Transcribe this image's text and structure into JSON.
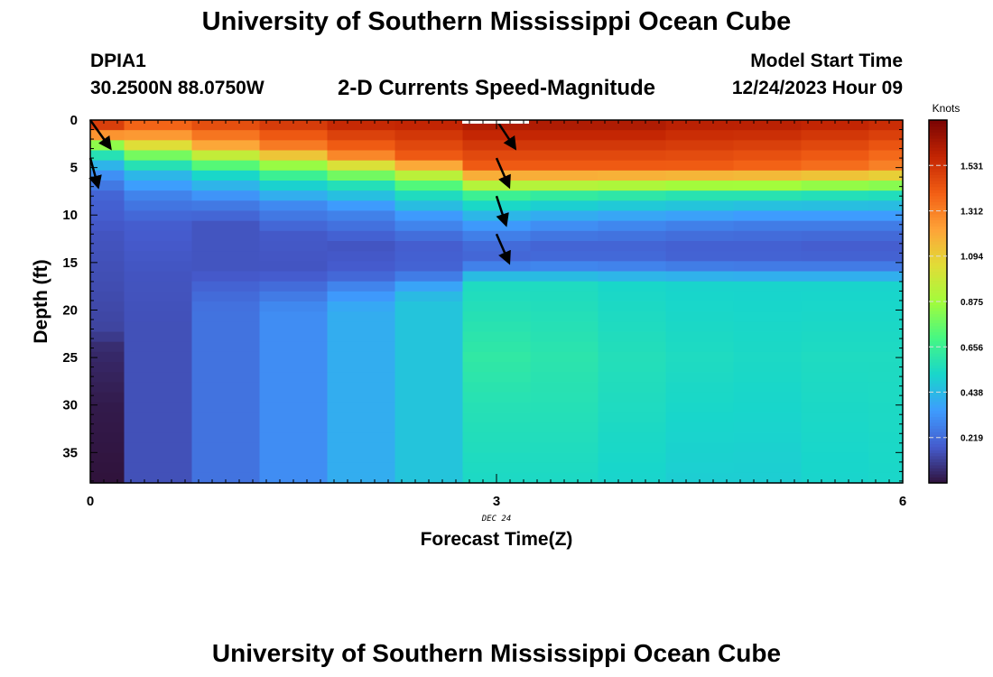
{
  "header": {
    "title": "University of Southern Mississippi Ocean Cube",
    "station": "DPIA1",
    "coords": "30.2500N  88.0750W",
    "subtitle": "2-D Currents Speed-Magnitude",
    "model_start_label": "Model Start Time",
    "model_start_value": "12/24/2023 Hour 09"
  },
  "footer": {
    "title": "University of Southern Mississippi Ocean Cube"
  },
  "chart_data": {
    "type": "heatmap",
    "xlabel": "Forecast Time(Z)",
    "ylabel": "Depth (ft)",
    "x_ticks": [
      0,
      3,
      6
    ],
    "x_tick_labels": [
      "0",
      "3",
      "6"
    ],
    "x_date_label": "DEC 24",
    "xlim": [
      0,
      6
    ],
    "y_ticks": [
      0,
      5,
      10,
      15,
      20,
      25,
      30,
      35
    ],
    "y_tick_labels": [
      "0",
      "5",
      "10",
      "15",
      "20",
      "25",
      "30",
      "35"
    ],
    "ylim": [
      0,
      38.2
    ],
    "y_inverted": true,
    "colorbar": {
      "title": "Knots",
      "ticks": [
        0.219,
        0.438,
        0.656,
        0.875,
        1.094,
        1.312,
        1.531
      ],
      "tick_labels": [
        "0.219",
        "0.438",
        "0.656",
        "0.875",
        "1.094",
        "1.312",
        "1.531"
      ],
      "range": [
        0,
        1.75
      ]
    },
    "time_columns": [
      0,
      0.5,
      1,
      1.5,
      2,
      2.5,
      3,
      3.5,
      4,
      4.5,
      5,
      5.5,
      6
    ],
    "depth_profiles": [
      {
        "name": "col0",
        "stops": [
          [
            0,
            1.6
          ],
          [
            1.5,
            1.3
          ],
          [
            3,
            0.7
          ],
          [
            4.5,
            0.45
          ],
          [
            6,
            0.3
          ],
          [
            8,
            0.2
          ],
          [
            12,
            0.16
          ],
          [
            18,
            0.14
          ],
          [
            22,
            0.12
          ],
          [
            24,
            0.06
          ],
          [
            30,
            0.02
          ],
          [
            38.2,
            0.0
          ]
        ]
      },
      {
        "name": "col1",
        "stops": [
          [
            0,
            1.45
          ],
          [
            2,
            1.2
          ],
          [
            4,
            0.72
          ],
          [
            5.5,
            0.45
          ],
          [
            8,
            0.28
          ],
          [
            11,
            0.18
          ],
          [
            16,
            0.16
          ],
          [
            22,
            0.15
          ],
          [
            38.2,
            0.15
          ]
        ]
      },
      {
        "name": "col2",
        "stops": [
          [
            0,
            1.5
          ],
          [
            2.5,
            1.25
          ],
          [
            4.5,
            0.78
          ],
          [
            6,
            0.5
          ],
          [
            8.5,
            0.28
          ],
          [
            11,
            0.16
          ],
          [
            16,
            0.16
          ],
          [
            18,
            0.21
          ],
          [
            20,
            0.24
          ],
          [
            38.2,
            0.24
          ]
        ]
      },
      {
        "name": "col3",
        "stops": [
          [
            0,
            1.55
          ],
          [
            3,
            1.3
          ],
          [
            5,
            0.8
          ],
          [
            6.5,
            0.55
          ],
          [
            9,
            0.3
          ],
          [
            12,
            0.17
          ],
          [
            16,
            0.16
          ],
          [
            18,
            0.24
          ],
          [
            20,
            0.31
          ],
          [
            38.2,
            0.31
          ]
        ]
      },
      {
        "name": "col4",
        "stops": [
          [
            0,
            1.6
          ],
          [
            3.5,
            1.35
          ],
          [
            5.5,
            0.85
          ],
          [
            7,
            0.55
          ],
          [
            9.5,
            0.3
          ],
          [
            13,
            0.16
          ],
          [
            16,
            0.18
          ],
          [
            18,
            0.32
          ],
          [
            20,
            0.4
          ],
          [
            38.2,
            0.4
          ]
        ]
      },
      {
        "name": "col5",
        "stops": [
          [
            0,
            1.6
          ],
          [
            4,
            1.4
          ],
          [
            6,
            0.9
          ],
          [
            7.5,
            0.6
          ],
          [
            10,
            0.35
          ],
          [
            13,
            0.18
          ],
          [
            16,
            0.2
          ],
          [
            17,
            0.34
          ],
          [
            19,
            0.47
          ],
          [
            38.2,
            0.47
          ]
        ]
      },
      {
        "name": "col6",
        "stops": [
          [
            0,
            1.65
          ],
          [
            5,
            1.4
          ],
          [
            7,
            0.9
          ],
          [
            8,
            0.65
          ],
          [
            9.5,
            0.48
          ],
          [
            11,
            0.35
          ],
          [
            13,
            0.22
          ],
          [
            15,
            0.2
          ],
          [
            16,
            0.4
          ],
          [
            17.5,
            0.55
          ],
          [
            25,
            0.62
          ],
          [
            30,
            0.58
          ],
          [
            38.2,
            0.54
          ]
        ]
      },
      {
        "name": "col7",
        "stops": [
          [
            0,
            1.65
          ],
          [
            5,
            1.4
          ],
          [
            7,
            0.9
          ],
          [
            8,
            0.62
          ],
          [
            9.5,
            0.45
          ],
          [
            11,
            0.32
          ],
          [
            13,
            0.2
          ],
          [
            15,
            0.22
          ],
          [
            16,
            0.4
          ],
          [
            17.5,
            0.55
          ],
          [
            25,
            0.6
          ],
          [
            38.2,
            0.54
          ]
        ]
      },
      {
        "name": "col8",
        "stops": [
          [
            0,
            1.65
          ],
          [
            5,
            1.4
          ],
          [
            7,
            0.88
          ],
          [
            8,
            0.6
          ],
          [
            9.5,
            0.43
          ],
          [
            11,
            0.3
          ],
          [
            13,
            0.2
          ],
          [
            15,
            0.22
          ],
          [
            16,
            0.38
          ],
          [
            17.5,
            0.53
          ],
          [
            25,
            0.57
          ],
          [
            38.2,
            0.52
          ]
        ]
      },
      {
        "name": "col9",
        "stops": [
          [
            0,
            1.62
          ],
          [
            5,
            1.4
          ],
          [
            7,
            0.85
          ],
          [
            8,
            0.58
          ],
          [
            9.5,
            0.42
          ],
          [
            11,
            0.28
          ],
          [
            13,
            0.19
          ],
          [
            15,
            0.2
          ],
          [
            16,
            0.37
          ],
          [
            17.5,
            0.52
          ],
          [
            25,
            0.55
          ],
          [
            38.2,
            0.5
          ]
        ]
      },
      {
        "name": "col10",
        "stops": [
          [
            0,
            1.62
          ],
          [
            5,
            1.38
          ],
          [
            7,
            0.85
          ],
          [
            8,
            0.58
          ],
          [
            9.5,
            0.4
          ],
          [
            11,
            0.27
          ],
          [
            13,
            0.19
          ],
          [
            15,
            0.2
          ],
          [
            16,
            0.36
          ],
          [
            17.5,
            0.52
          ],
          [
            25,
            0.54
          ],
          [
            38.2,
            0.5
          ]
        ]
      },
      {
        "name": "col11",
        "stops": [
          [
            0,
            1.6
          ],
          [
            5,
            1.35
          ],
          [
            7,
            0.82
          ],
          [
            8,
            0.56
          ],
          [
            9.5,
            0.4
          ],
          [
            11,
            0.27
          ],
          [
            13,
            0.18
          ],
          [
            15,
            0.2
          ],
          [
            16,
            0.36
          ],
          [
            17.5,
            0.52
          ],
          [
            25,
            0.55
          ],
          [
            38.2,
            0.52
          ]
        ]
      },
      {
        "name": "col12",
        "stops": [
          [
            0,
            1.58
          ],
          [
            5,
            1.3
          ],
          [
            7,
            0.8
          ],
          [
            8,
            0.55
          ],
          [
            9.5,
            0.4
          ],
          [
            11,
            0.27
          ],
          [
            13,
            0.18
          ],
          [
            15,
            0.2
          ],
          [
            16,
            0.36
          ],
          [
            17.5,
            0.52
          ],
          [
            25,
            0.55
          ],
          [
            38.2,
            0.53
          ]
        ]
      }
    ],
    "vectors": [
      {
        "time": 0,
        "depth": 0,
        "dx": 0.13,
        "dy_ft": 2.6
      },
      {
        "time": 0,
        "depth": 4,
        "dx": 0.05,
        "dy_ft": 2.6
      },
      {
        "time": 3,
        "depth": 0,
        "dx": 0.12,
        "dy_ft": 2.6
      },
      {
        "time": 3,
        "depth": 4,
        "dx": 0.08,
        "dy_ft": 2.6
      },
      {
        "time": 3,
        "depth": 8,
        "dx": 0.06,
        "dy_ft": 2.6
      },
      {
        "time": 3,
        "depth": 12,
        "dx": 0.08,
        "dy_ft": 2.6
      }
    ]
  }
}
